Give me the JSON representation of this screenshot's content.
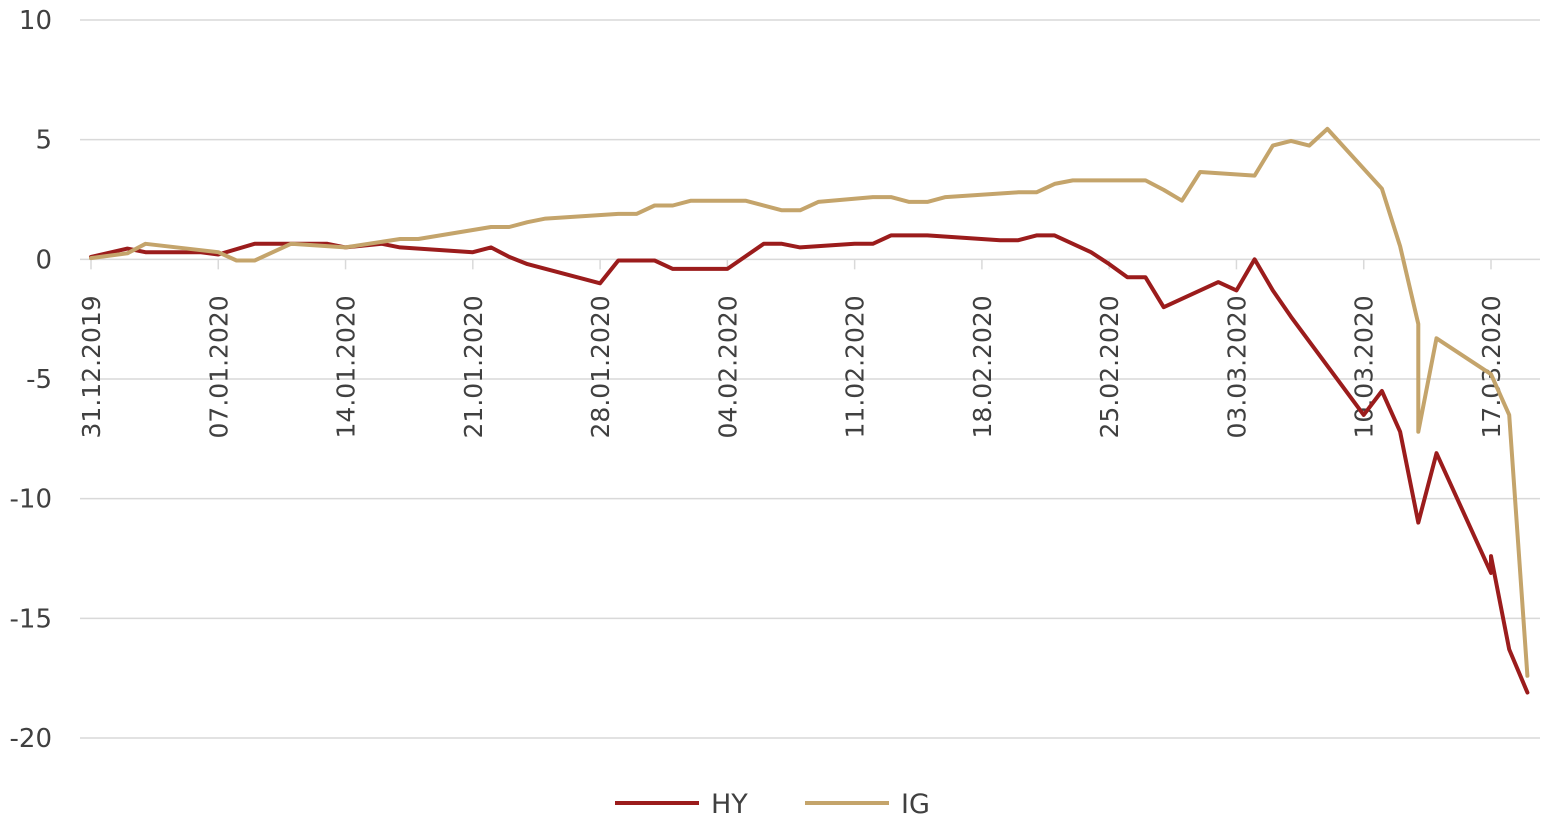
{
  "chart_data": {
    "type": "line",
    "title": "",
    "xlabel": "",
    "ylabel": "",
    "ylim": [
      -20,
      10
    ],
    "yticks": [
      10,
      5,
      0,
      -5,
      -10,
      -15,
      -20
    ],
    "grid": "horizontal",
    "legend_placement": "bottom-center",
    "x_tick_labels": [
      "31.12.2019",
      "07.01.2020",
      "14.01.2020",
      "21.01.2020",
      "28.01.2020",
      "04.02.2020",
      "11.02.2020",
      "18.02.2020",
      "25.02.2020",
      "03.03.2020",
      "10.03.2020",
      "17.03.2020"
    ],
    "x_range": [
      "2019-12-31",
      "2020-03-19"
    ],
    "series": [
      {
        "name": "HY",
        "color": "#9b1c1c",
        "points": [
          [
            "2019-12-31",
            0.1
          ],
          [
            "2020-01-02",
            0.45
          ],
          [
            "2020-01-03",
            0.3
          ],
          [
            "2020-01-06",
            0.3
          ],
          [
            "2020-01-07",
            0.2
          ],
          [
            "2020-01-09",
            0.65
          ],
          [
            "2020-01-13",
            0.65
          ],
          [
            "2020-01-14",
            0.5
          ],
          [
            "2020-01-16",
            0.65
          ],
          [
            "2020-01-17",
            0.5
          ],
          [
            "2020-01-21",
            0.3
          ],
          [
            "2020-01-22",
            0.5
          ],
          [
            "2020-01-23",
            0.1
          ],
          [
            "2020-01-24",
            -0.2
          ],
          [
            "2020-01-28",
            -1.0
          ],
          [
            "2020-01-29",
            -0.05
          ],
          [
            "2020-01-31",
            -0.05
          ],
          [
            "2020-02-01",
            -0.4
          ],
          [
            "2020-02-04",
            -0.4
          ],
          [
            "2020-02-06",
            0.65
          ],
          [
            "2020-02-07",
            0.65
          ],
          [
            "2020-02-08",
            0.5
          ],
          [
            "2020-02-11",
            0.65
          ],
          [
            "2020-02-12",
            0.65
          ],
          [
            "2020-02-13",
            1.0
          ],
          [
            "2020-02-15",
            1.0
          ],
          [
            "2020-02-19",
            0.8
          ],
          [
            "2020-02-20",
            0.8
          ],
          [
            "2020-02-21",
            1.0
          ],
          [
            "2020-02-22",
            1.0
          ],
          [
            "2020-02-24",
            0.3
          ],
          [
            "2020-02-25",
            -0.2
          ],
          [
            "2020-02-26",
            -0.75
          ],
          [
            "2020-02-27",
            -0.75
          ],
          [
            "2020-02-28",
            -2.0
          ],
          [
            "2020-02-29",
            -1.65
          ],
          [
            "2020-03-02",
            -0.95
          ],
          [
            "2020-03-03",
            -1.3
          ],
          [
            "2020-03-04",
            0.0
          ],
          [
            "2020-03-05",
            -1.3
          ],
          [
            "2020-03-06",
            -2.4
          ],
          [
            "2020-03-10",
            -6.5
          ],
          [
            "2020-03-11",
            -5.5
          ],
          [
            "2020-03-12",
            -7.2
          ],
          [
            "2020-03-13",
            -11.0
          ],
          [
            "2020-03-14",
            -8.1
          ],
          [
            "2020-03-17",
            -13.1
          ],
          [
            "2020-03-17",
            -12.4
          ],
          [
            "2020-03-18",
            -16.3
          ],
          [
            "2020-03-19",
            -18.1
          ]
        ]
      },
      {
        "name": "IG",
        "color": "#c4a46b",
        "points": [
          [
            "2019-12-31",
            0.05
          ],
          [
            "2020-01-02",
            0.25
          ],
          [
            "2020-01-03",
            0.65
          ],
          [
            "2020-01-07",
            0.3
          ],
          [
            "2020-01-08",
            -0.05
          ],
          [
            "2020-01-09",
            -0.05
          ],
          [
            "2020-01-11",
            0.65
          ],
          [
            "2020-01-14",
            0.5
          ],
          [
            "2020-01-17",
            0.85
          ],
          [
            "2020-01-18",
            0.85
          ],
          [
            "2020-01-22",
            1.35
          ],
          [
            "2020-01-23",
            1.35
          ],
          [
            "2020-01-24",
            1.55
          ],
          [
            "2020-01-25",
            1.7
          ],
          [
            "2020-01-29",
            1.9
          ],
          [
            "2020-01-30",
            1.9
          ],
          [
            "2020-01-31",
            2.25
          ],
          [
            "2020-02-01",
            2.25
          ],
          [
            "2020-02-02",
            2.45
          ],
          [
            "2020-02-05",
            2.45
          ],
          [
            "2020-02-07",
            2.05
          ],
          [
            "2020-02-08",
            2.05
          ],
          [
            "2020-02-09",
            2.4
          ],
          [
            "2020-02-12",
            2.6
          ],
          [
            "2020-02-13",
            2.6
          ],
          [
            "2020-02-14",
            2.4
          ],
          [
            "2020-02-15",
            2.4
          ],
          [
            "2020-02-16",
            2.6
          ],
          [
            "2020-02-20",
            2.8
          ],
          [
            "2020-02-21",
            2.8
          ],
          [
            "2020-02-22",
            3.15
          ],
          [
            "2020-02-23",
            3.3
          ],
          [
            "2020-02-26",
            3.3
          ],
          [
            "2020-02-27",
            3.3
          ],
          [
            "2020-02-28",
            2.9
          ],
          [
            "2020-02-29",
            2.45
          ],
          [
            "2020-03-01",
            3.65
          ],
          [
            "2020-03-04",
            3.5
          ],
          [
            "2020-03-05",
            4.75
          ],
          [
            "2020-03-06",
            4.95
          ],
          [
            "2020-03-07",
            4.75
          ],
          [
            "2020-03-08",
            5.45
          ],
          [
            "2020-03-11",
            2.95
          ],
          [
            "2020-03-12",
            0.55
          ],
          [
            "2020-03-13",
            -2.7
          ],
          [
            "2020-03-13",
            -7.2
          ],
          [
            "2020-03-14",
            -3.3
          ],
          [
            "2020-03-17",
            -4.8
          ],
          [
            "2020-03-18",
            -6.5
          ],
          [
            "2020-03-19",
            -17.4
          ]
        ]
      }
    ]
  }
}
